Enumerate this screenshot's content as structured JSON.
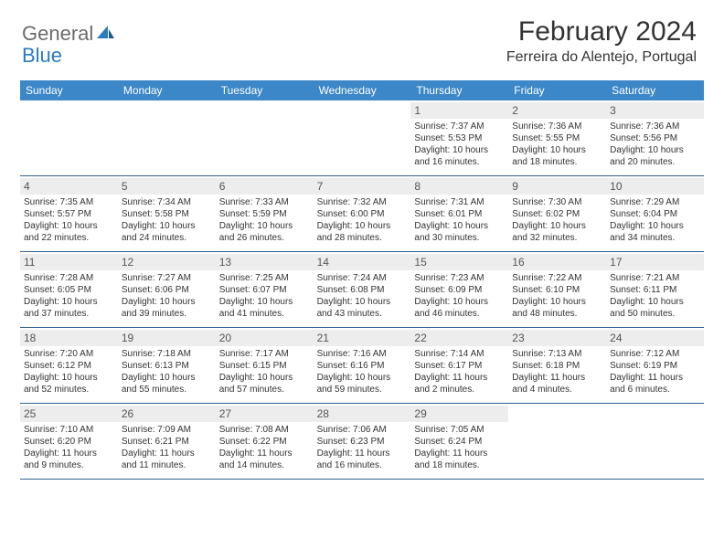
{
  "colors": {
    "header_bg": "#3b87c8",
    "daynum_bg": "#ededed",
    "border": "#2e5f8f",
    "text": "#333333",
    "logo_gray": "#6b6b6b",
    "logo_blue": "#2b7bbf"
  },
  "logo": {
    "part1": "General",
    "part2": "Blue"
  },
  "title": "February 2024",
  "location": "Ferreira do Alentejo, Portugal",
  "dow": [
    "Sunday",
    "Monday",
    "Tuesday",
    "Wednesday",
    "Thursday",
    "Friday",
    "Saturday"
  ],
  "weeks": [
    [
      {
        "n": "",
        "empty": true
      },
      {
        "n": "",
        "empty": true
      },
      {
        "n": "",
        "empty": true
      },
      {
        "n": "",
        "empty": true
      },
      {
        "n": "1",
        "sr": "Sunrise: 7:37 AM",
        "ss": "Sunset: 5:53 PM",
        "d1": "Daylight: 10 hours",
        "d2": "and 16 minutes."
      },
      {
        "n": "2",
        "sr": "Sunrise: 7:36 AM",
        "ss": "Sunset: 5:55 PM",
        "d1": "Daylight: 10 hours",
        "d2": "and 18 minutes."
      },
      {
        "n": "3",
        "sr": "Sunrise: 7:36 AM",
        "ss": "Sunset: 5:56 PM",
        "d1": "Daylight: 10 hours",
        "d2": "and 20 minutes."
      }
    ],
    [
      {
        "n": "4",
        "sr": "Sunrise: 7:35 AM",
        "ss": "Sunset: 5:57 PM",
        "d1": "Daylight: 10 hours",
        "d2": "and 22 minutes."
      },
      {
        "n": "5",
        "sr": "Sunrise: 7:34 AM",
        "ss": "Sunset: 5:58 PM",
        "d1": "Daylight: 10 hours",
        "d2": "and 24 minutes."
      },
      {
        "n": "6",
        "sr": "Sunrise: 7:33 AM",
        "ss": "Sunset: 5:59 PM",
        "d1": "Daylight: 10 hours",
        "d2": "and 26 minutes."
      },
      {
        "n": "7",
        "sr": "Sunrise: 7:32 AM",
        "ss": "Sunset: 6:00 PM",
        "d1": "Daylight: 10 hours",
        "d2": "and 28 minutes."
      },
      {
        "n": "8",
        "sr": "Sunrise: 7:31 AM",
        "ss": "Sunset: 6:01 PM",
        "d1": "Daylight: 10 hours",
        "d2": "and 30 minutes."
      },
      {
        "n": "9",
        "sr": "Sunrise: 7:30 AM",
        "ss": "Sunset: 6:02 PM",
        "d1": "Daylight: 10 hours",
        "d2": "and 32 minutes."
      },
      {
        "n": "10",
        "sr": "Sunrise: 7:29 AM",
        "ss": "Sunset: 6:04 PM",
        "d1": "Daylight: 10 hours",
        "d2": "and 34 minutes."
      }
    ],
    [
      {
        "n": "11",
        "sr": "Sunrise: 7:28 AM",
        "ss": "Sunset: 6:05 PM",
        "d1": "Daylight: 10 hours",
        "d2": "and 37 minutes."
      },
      {
        "n": "12",
        "sr": "Sunrise: 7:27 AM",
        "ss": "Sunset: 6:06 PM",
        "d1": "Daylight: 10 hours",
        "d2": "and 39 minutes."
      },
      {
        "n": "13",
        "sr": "Sunrise: 7:25 AM",
        "ss": "Sunset: 6:07 PM",
        "d1": "Daylight: 10 hours",
        "d2": "and 41 minutes."
      },
      {
        "n": "14",
        "sr": "Sunrise: 7:24 AM",
        "ss": "Sunset: 6:08 PM",
        "d1": "Daylight: 10 hours",
        "d2": "and 43 minutes."
      },
      {
        "n": "15",
        "sr": "Sunrise: 7:23 AM",
        "ss": "Sunset: 6:09 PM",
        "d1": "Daylight: 10 hours",
        "d2": "and 46 minutes."
      },
      {
        "n": "16",
        "sr": "Sunrise: 7:22 AM",
        "ss": "Sunset: 6:10 PM",
        "d1": "Daylight: 10 hours",
        "d2": "and 48 minutes."
      },
      {
        "n": "17",
        "sr": "Sunrise: 7:21 AM",
        "ss": "Sunset: 6:11 PM",
        "d1": "Daylight: 10 hours",
        "d2": "and 50 minutes."
      }
    ],
    [
      {
        "n": "18",
        "sr": "Sunrise: 7:20 AM",
        "ss": "Sunset: 6:12 PM",
        "d1": "Daylight: 10 hours",
        "d2": "and 52 minutes."
      },
      {
        "n": "19",
        "sr": "Sunrise: 7:18 AM",
        "ss": "Sunset: 6:13 PM",
        "d1": "Daylight: 10 hours",
        "d2": "and 55 minutes."
      },
      {
        "n": "20",
        "sr": "Sunrise: 7:17 AM",
        "ss": "Sunset: 6:15 PM",
        "d1": "Daylight: 10 hours",
        "d2": "and 57 minutes."
      },
      {
        "n": "21",
        "sr": "Sunrise: 7:16 AM",
        "ss": "Sunset: 6:16 PM",
        "d1": "Daylight: 10 hours",
        "d2": "and 59 minutes."
      },
      {
        "n": "22",
        "sr": "Sunrise: 7:14 AM",
        "ss": "Sunset: 6:17 PM",
        "d1": "Daylight: 11 hours",
        "d2": "and 2 minutes."
      },
      {
        "n": "23",
        "sr": "Sunrise: 7:13 AM",
        "ss": "Sunset: 6:18 PM",
        "d1": "Daylight: 11 hours",
        "d2": "and 4 minutes."
      },
      {
        "n": "24",
        "sr": "Sunrise: 7:12 AM",
        "ss": "Sunset: 6:19 PM",
        "d1": "Daylight: 11 hours",
        "d2": "and 6 minutes."
      }
    ],
    [
      {
        "n": "25",
        "sr": "Sunrise: 7:10 AM",
        "ss": "Sunset: 6:20 PM",
        "d1": "Daylight: 11 hours",
        "d2": "and 9 minutes."
      },
      {
        "n": "26",
        "sr": "Sunrise: 7:09 AM",
        "ss": "Sunset: 6:21 PM",
        "d1": "Daylight: 11 hours",
        "d2": "and 11 minutes."
      },
      {
        "n": "27",
        "sr": "Sunrise: 7:08 AM",
        "ss": "Sunset: 6:22 PM",
        "d1": "Daylight: 11 hours",
        "d2": "and 14 minutes."
      },
      {
        "n": "28",
        "sr": "Sunrise: 7:06 AM",
        "ss": "Sunset: 6:23 PM",
        "d1": "Daylight: 11 hours",
        "d2": "and 16 minutes."
      },
      {
        "n": "29",
        "sr": "Sunrise: 7:05 AM",
        "ss": "Sunset: 6:24 PM",
        "d1": "Daylight: 11 hours",
        "d2": "and 18 minutes."
      },
      {
        "n": "",
        "empty": true
      },
      {
        "n": "",
        "empty": true
      }
    ]
  ]
}
